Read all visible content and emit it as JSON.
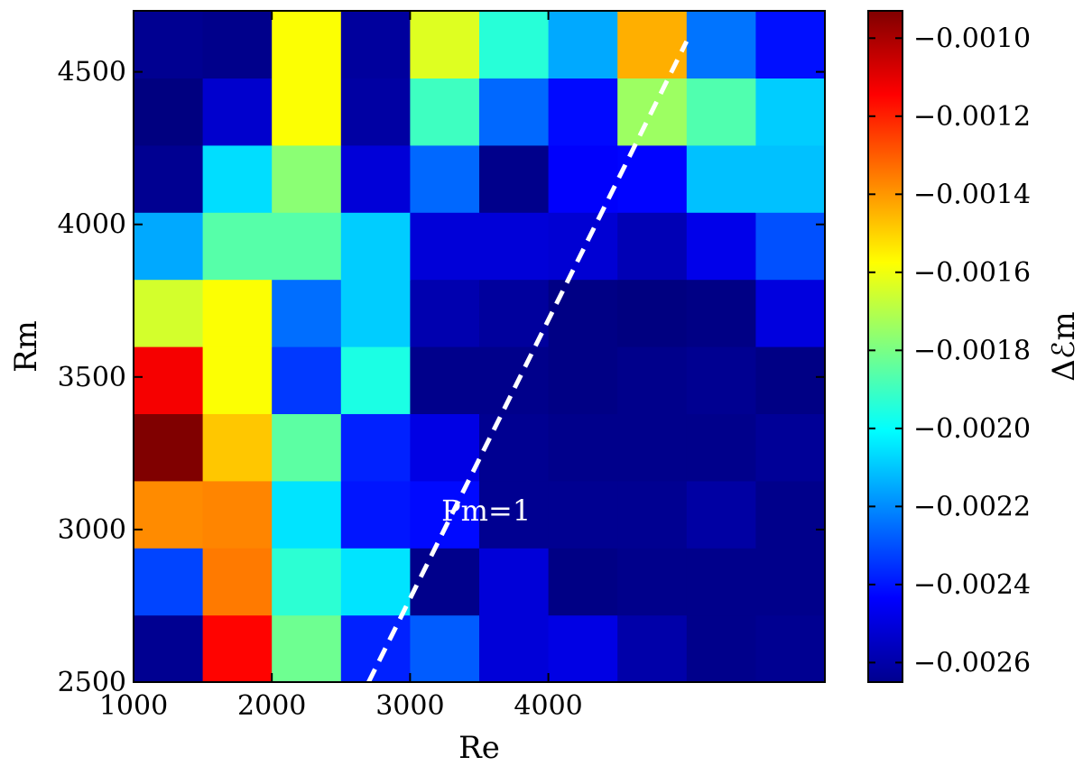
{
  "chart_data": {
    "type": "heatmap",
    "title": "",
    "xlabel": "Re",
    "ylabel": "Rm",
    "colorbar_label": "Δℰm",
    "colormap": "jet",
    "x_ticks": [
      1000,
      2000,
      3000,
      4000
    ],
    "y_ticks": [
      2500,
      3000,
      3500,
      4000,
      4500
    ],
    "xlim": [
      1000,
      6000
    ],
    "ylim": [
      2500,
      4700
    ],
    "cell_x_edges": [
      1000,
      1500,
      2000,
      2500,
      3000,
      3500,
      4000,
      4500,
      5000,
      5500,
      6000
    ],
    "cell_y_edges": [
      2500,
      2720,
      2940,
      3160,
      3380,
      3600,
      3820,
      4040,
      4260,
      4480,
      4700
    ],
    "values_bottom_to_top": [
      [
        -0.00262,
        -0.00115,
        -0.00182,
        -0.00238,
        -0.00228,
        -0.0025,
        -0.00248,
        -0.00258,
        -0.00263,
        -0.00262
      ],
      [
        -0.00232,
        -0.00135,
        -0.00193,
        -0.00205,
        -0.00263,
        -0.0025,
        -0.00264,
        -0.00263,
        -0.00263,
        -0.00263
      ],
      [
        -0.00138,
        -0.00137,
        -0.00205,
        -0.0024,
        -0.00242,
        -0.00262,
        -0.00262,
        -0.00262,
        -0.00259,
        -0.00263
      ],
      [
        -0.00093,
        -0.00148,
        -0.00185,
        -0.00238,
        -0.00248,
        -0.00262,
        -0.00263,
        -0.00263,
        -0.00263,
        -0.00261
      ],
      [
        -0.00113,
        -0.00158,
        -0.00234,
        -0.00196,
        -0.00263,
        -0.00263,
        -0.00264,
        -0.00263,
        -0.00262,
        -0.00264
      ],
      [
        -0.00165,
        -0.00158,
        -0.00225,
        -0.00209,
        -0.00257,
        -0.0026,
        -0.00264,
        -0.00265,
        -0.00264,
        -0.00249
      ],
      [
        -0.00215,
        -0.00186,
        -0.00186,
        -0.00209,
        -0.0025,
        -0.0025,
        -0.00251,
        -0.00256,
        -0.00247,
        -0.0023
      ],
      [
        -0.00262,
        -0.00206,
        -0.00177,
        -0.0025,
        -0.00226,
        -0.00263,
        -0.00244,
        -0.00243,
        -0.00211,
        -0.00211
      ],
      [
        -0.00265,
        -0.00252,
        -0.00158,
        -0.00259,
        -0.0019,
        -0.00226,
        -0.00242,
        -0.00174,
        -0.00187,
        -0.00209
      ],
      [
        -0.00262,
        -0.00263,
        -0.00158,
        -0.0026,
        -0.00163,
        -0.00194,
        -0.00215,
        -0.00144,
        -0.00224,
        -0.00241
      ]
    ],
    "colorbar": {
      "min": -0.00265,
      "max": -0.00093,
      "ticks": [
        -0.001,
        -0.0012,
        -0.0014,
        -0.0016,
        -0.0018,
        -0.002,
        -0.0022,
        -0.0024,
        -0.0026
      ],
      "tick_labels": [
        "−0.0010",
        "−0.0012",
        "−0.0014",
        "−0.0016",
        "−0.0018",
        "−0.0020",
        "−0.0022",
        "−0.0024",
        "−0.0026"
      ]
    },
    "annotations": [
      {
        "text": "Pm=1",
        "x": 3550,
        "y": 3030
      }
    ],
    "reference_line": {
      "style": "dashed",
      "color": "#ffffff",
      "x": [
        2700,
        5000
      ],
      "y": [
        2500,
        4600
      ]
    }
  }
}
